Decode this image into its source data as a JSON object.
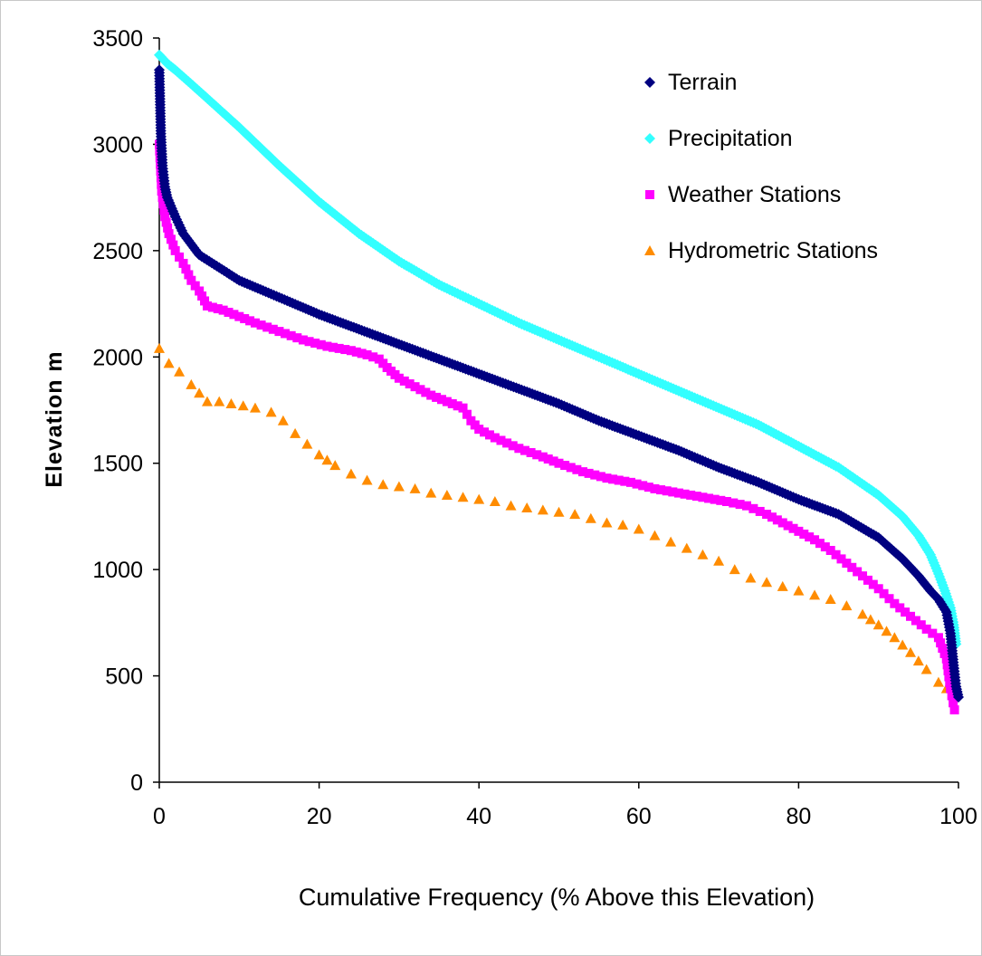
{
  "chart_data": {
    "type": "scatter",
    "title": "",
    "xlabel": "Cumulative Frequency (% Above this Elevation)",
    "ylabel": "Elevation m",
    "xlim": [
      0,
      100
    ],
    "ylim": [
      0,
      3500
    ],
    "x_ticks": [
      "0",
      "20",
      "40",
      "60",
      "80",
      "100"
    ],
    "y_ticks": [
      "0",
      "500",
      "1000",
      "1500",
      "2000",
      "2500",
      "3000",
      "3500"
    ],
    "grid": false,
    "legend_position": "top-right",
    "series": [
      {
        "name": "Terrain",
        "marker": "diamond",
        "color": "#000080",
        "x": [
          0,
          0.1,
          0.2,
          0.4,
          0.7,
          1,
          2,
          3,
          5,
          7.5,
          10,
          15,
          20,
          25,
          30,
          35,
          40,
          45,
          50,
          55,
          60,
          65,
          70,
          75,
          80,
          85,
          90,
          93,
          95,
          96.5,
          97.5,
          98.5,
          99,
          99.4,
          99.7,
          100
        ],
        "y": [
          3350,
          3200,
          3050,
          2900,
          2800,
          2750,
          2660,
          2580,
          2480,
          2420,
          2360,
          2280,
          2200,
          2130,
          2060,
          1990,
          1920,
          1850,
          1780,
          1700,
          1630,
          1560,
          1480,
          1410,
          1330,
          1260,
          1150,
          1050,
          970,
          900,
          860,
          800,
          700,
          550,
          450,
          400
        ]
      },
      {
        "name": "Precipitation",
        "marker": "diamond",
        "color": "#33ffff",
        "x": [
          0,
          1,
          2,
          5,
          10,
          15,
          20,
          25,
          30,
          35,
          40,
          45,
          50,
          55,
          60,
          65,
          70,
          75,
          80,
          85,
          90,
          93,
          95,
          96.5,
          97.5,
          98.3,
          99,
          99.4,
          99.7
        ],
        "y": [
          3420,
          3380,
          3350,
          3250,
          3080,
          2900,
          2730,
          2580,
          2450,
          2340,
          2250,
          2160,
          2080,
          2000,
          1920,
          1840,
          1760,
          1680,
          1580,
          1480,
          1350,
          1250,
          1160,
          1070,
          980,
          900,
          820,
          740,
          650
        ]
      },
      {
        "name": "Weather Stations",
        "marker": "square",
        "color": "#ff00ff",
        "x": [
          0,
          0.3,
          0.7,
          1.2,
          2,
          3,
          4,
          5,
          6,
          8,
          10,
          12,
          15,
          18,
          21,
          24,
          26,
          27.5,
          28.5,
          30,
          32,
          34,
          36,
          38,
          39,
          40,
          42,
          45,
          48,
          50,
          53,
          56,
          59,
          62,
          65,
          68,
          71,
          73.5,
          76,
          78,
          80,
          82,
          84,
          86,
          88,
          90,
          92,
          94,
          96,
          97.5,
          98.5,
          99,
          99.5
        ],
        "y": [
          3000,
          2780,
          2660,
          2580,
          2500,
          2440,
          2360,
          2310,
          2240,
          2220,
          2190,
          2160,
          2120,
          2080,
          2050,
          2030,
          2010,
          1990,
          1950,
          1900,
          1860,
          1820,
          1790,
          1760,
          1700,
          1660,
          1620,
          1570,
          1530,
          1500,
          1460,
          1430,
          1410,
          1380,
          1360,
          1340,
          1320,
          1300,
          1260,
          1220,
          1180,
          1140,
          1090,
          1030,
          970,
          910,
          840,
          780,
          720,
          680,
          580,
          440,
          340
        ]
      },
      {
        "name": "Hydrometric Stations",
        "marker": "triangle",
        "color": "#ff8c00",
        "x": [
          0,
          1.2,
          2.5,
          4,
          6,
          7.5,
          9,
          10.5,
          12,
          14,
          15.5,
          17,
          18.5,
          20,
          22,
          24,
          26,
          28,
          30,
          32,
          34,
          36,
          38,
          40,
          42,
          44,
          46,
          48,
          50,
          52,
          54,
          56,
          58,
          60,
          62,
          64,
          66,
          68,
          70,
          72,
          74,
          76,
          78,
          80,
          82,
          84,
          86,
          88,
          90,
          92,
          94,
          96,
          97.5,
          98.5
        ],
        "y": [
          2040,
          1970,
          1930,
          1870,
          1790,
          1790,
          1780,
          1770,
          1760,
          1740,
          1700,
          1640,
          1590,
          1540,
          1490,
          1450,
          1420,
          1400,
          1390,
          1380,
          1360,
          1350,
          1340,
          1330,
          1320,
          1300,
          1290,
          1280,
          1270,
          1260,
          1240,
          1220,
          1210,
          1190,
          1160,
          1130,
          1100,
          1070,
          1040,
          1000,
          960,
          940,
          920,
          900,
          880,
          860,
          830,
          790,
          740,
          680,
          610,
          530,
          470,
          440
        ]
      }
    ]
  }
}
